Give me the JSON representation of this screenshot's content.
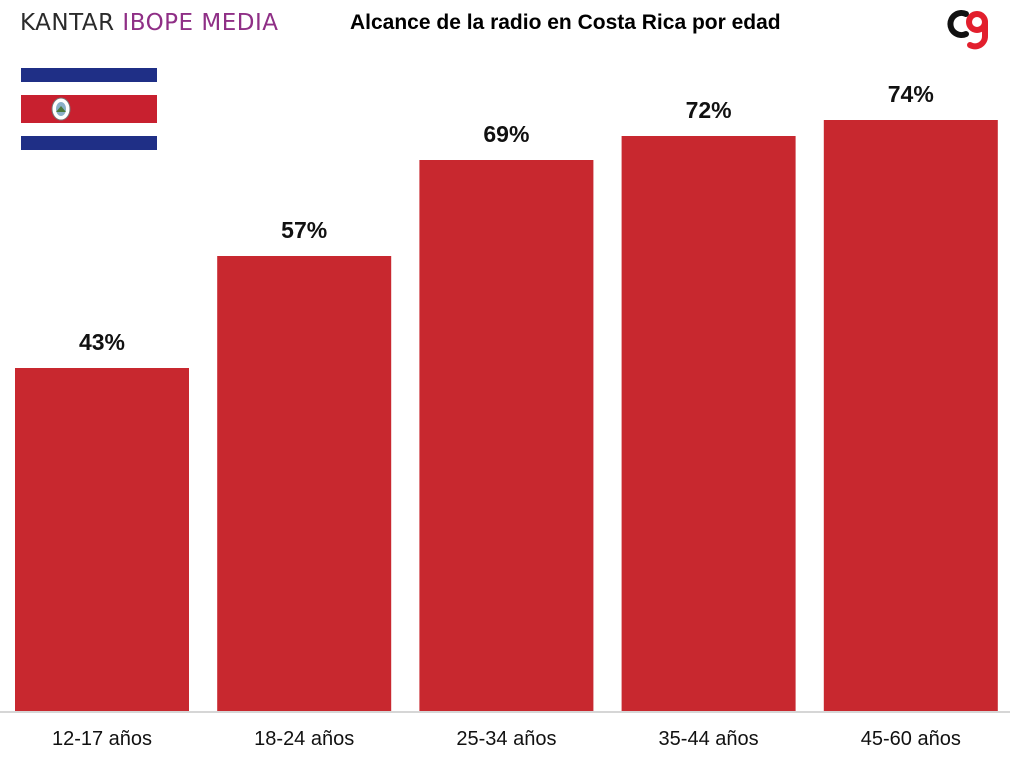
{
  "header": {
    "brand_part1": "KANTAR",
    "brand_part2": "IBOPE MEDIA",
    "title": "Alcance de la radio en Costa Rica por edad"
  },
  "icons": {
    "brand_logo": "kantar-ibope-media-wordmark",
    "corner_logo": "cg-logo-icon",
    "flag": "costa-rica-flag-icon"
  },
  "colors": {
    "bar": "#c8282f",
    "brand_purple": "#8f2f86",
    "flag_blue": "#1f2f86",
    "flag_red": "#c8202f",
    "logo_red": "#e21f2d"
  },
  "chart_data": {
    "type": "bar",
    "categories": [
      "12-17 años",
      "18-24 años",
      "25-34 años",
      "35-44 años",
      "45-60 años"
    ],
    "values": [
      43,
      57,
      69,
      72,
      74
    ],
    "value_labels": [
      "43%",
      "57%",
      "69%",
      "72%",
      "74%"
    ],
    "title": "Alcance de la radio en Costa Rica por edad",
    "xlabel": "",
    "ylabel": "",
    "ylim": [
      0,
      100
    ],
    "grid": false,
    "legend": "none"
  }
}
